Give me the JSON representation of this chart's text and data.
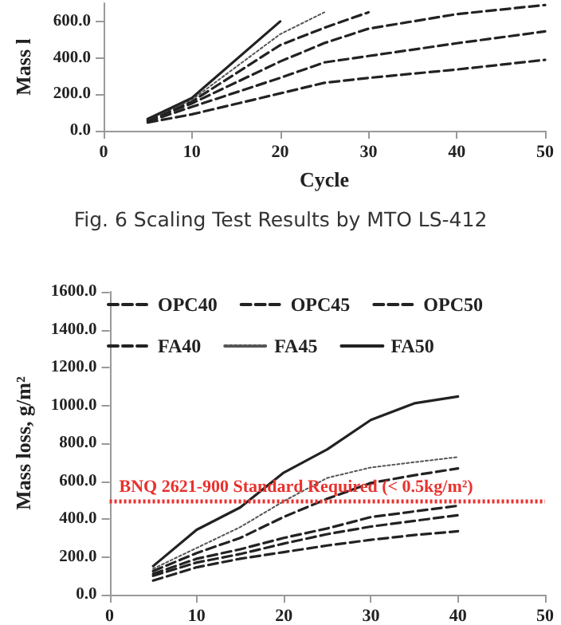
{
  "chart_data": [
    {
      "type": "line",
      "xlabel": "Cycle",
      "ylabel": "Mass l",
      "annotations": [
        "Fig. 6 Scaling Test Results by MTO LS-412"
      ],
      "x": [
        5,
        10,
        20,
        25,
        30,
        40,
        50
      ],
      "series": [
        {
          "color": "#222222",
          "line_style": "dashed",
          "values": [
            45,
            90,
            205,
            263,
            290,
            336,
            389
          ]
        },
        {
          "color": "#222222",
          "line_style": "dashed",
          "values": [
            50,
            131,
            290,
            375,
            410,
            480,
            545
          ]
        },
        {
          "color": "#222222",
          "line_style": "dashed",
          "values": [
            55,
            150,
            380,
            481,
            560,
            640,
            690
          ]
        },
        {
          "color": "#222222",
          "line_style": "dashed",
          "values": [
            60,
            160,
            470,
            565,
            650,
            null,
            null
          ]
        },
        {
          "color": "#555555",
          "line_style": "dotted",
          "values": [
            62,
            170,
            530,
            650,
            null,
            null,
            null
          ]
        },
        {
          "color": "#222222",
          "line_style": "solid",
          "values": [
            65,
            180,
            600,
            null,
            null,
            null,
            null
          ]
        }
      ],
      "xlim": [
        0,
        50
      ],
      "xticks": [
        0,
        10,
        20,
        30,
        40,
        50
      ],
      "ylim": [
        0,
        700
      ],
      "yticks": [
        {
          "value": 0,
          "label": "0.0"
        },
        {
          "value": 200,
          "label": "200.0"
        },
        {
          "value": 400,
          "label": "400.0"
        },
        {
          "value": 600,
          "label": "600.0"
        }
      ],
      "grid": false,
      "legend": false,
      "marker": "none"
    },
    {
      "type": "line",
      "ylabel": "Mass loss, g/m²",
      "x": [
        5,
        10,
        15,
        20,
        25,
        30,
        35,
        40
      ],
      "series": [
        {
          "name": "OPC40",
          "color": "#222222",
          "line_style": "dashed",
          "values": [
            75,
            145,
            190,
            225,
            260,
            290,
            315,
            335
          ]
        },
        {
          "name": "OPC45",
          "color": "#222222",
          "line_style": "dashed",
          "values": [
            100,
            170,
            215,
            270,
            320,
            360,
            390,
            420
          ]
        },
        {
          "name": "OPC50",
          "color": "#222222",
          "line_style": "dashed",
          "values": [
            125,
            220,
            300,
            411,
            507,
            590,
            631,
            667
          ]
        },
        {
          "name": "FA40",
          "color": "#222222",
          "line_style": "dashed",
          "values": [
            110,
            190,
            240,
            300,
            350,
            410,
            440,
            470
          ]
        },
        {
          "name": "FA45",
          "color": "#555555",
          "line_style": "dotted",
          "values": [
            137,
            247,
            357,
            494,
            617,
            672,
            700,
            727
          ]
        },
        {
          "name": "FA50",
          "color": "#222222",
          "line_style": "solid",
          "values": [
            151,
            343,
            461,
            645,
            768,
            923,
            1011,
            1047
          ]
        }
      ],
      "ref_lines": [
        {
          "axis": "y",
          "value": 495,
          "label": "BNQ 2621-900 Standard Required (< 0.5kg/m²)",
          "color": "#e8322e",
          "line_style": "dotted"
        }
      ],
      "xlim": [
        0,
        50
      ],
      "xticks": [
        0,
        10,
        20,
        30,
        40,
        50
      ],
      "ylim": [
        0,
        1600
      ],
      "yticks": [
        {
          "value": 0,
          "label": "0.0"
        },
        {
          "value": 200,
          "label": "200.0"
        },
        {
          "value": 400,
          "label": "400.0"
        },
        {
          "value": 600,
          "label": "600.0"
        },
        {
          "value": 800,
          "label": "800.0"
        },
        {
          "value": 1000,
          "label": "1000.0"
        },
        {
          "value": 1200,
          "label": "1200.0"
        },
        {
          "value": 1400,
          "label": "1400.0"
        },
        {
          "value": 1600,
          "label": "1600.0"
        }
      ],
      "grid": false,
      "legend": "top",
      "marker": "none"
    }
  ]
}
